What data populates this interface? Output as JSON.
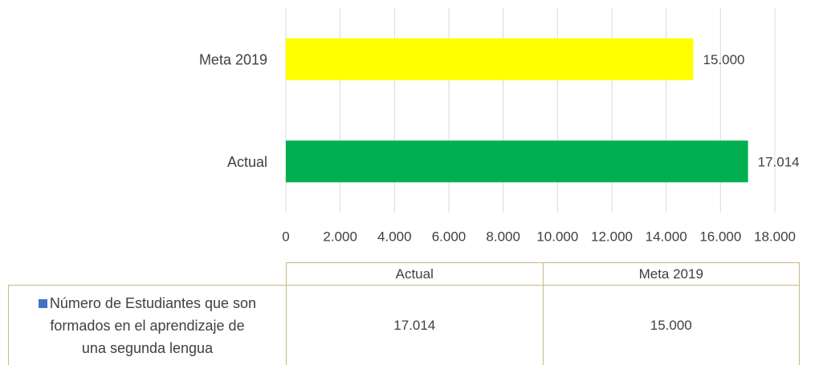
{
  "chart_data": {
    "type": "bar",
    "orientation": "horizontal",
    "categories": [
      "Actual",
      "Meta 2019"
    ],
    "series": [
      {
        "name": "Número de Estudiantes que son formados en el aprendizaje de una segunda lengua",
        "color": "#4472c4",
        "bar_colors": [
          "#00b050",
          "#ffff00"
        ],
        "values": [
          17014,
          15000
        ],
        "value_labels": [
          "17.014",
          "15.000"
        ]
      }
    ],
    "xlim": [
      0,
      18000
    ],
    "xticks": [
      0,
      {
        "value": 2000,
        "label": "2.000"
      },
      {
        "value": 4000,
        "label": "4.000"
      },
      {
        "value": 6000,
        "label": "6.000"
      },
      {
        "value": 8000,
        "label": "8.000"
      },
      {
        "value": 10000,
        "label": "10.000"
      },
      {
        "value": 12000,
        "label": "12.000"
      },
      {
        "value": 14000,
        "label": "14.000"
      },
      {
        "value": 16000,
        "label": "16.000"
      },
      {
        "value": 18000,
        "label": "18.000"
      }
    ],
    "grid": true,
    "data_table": true
  }
}
